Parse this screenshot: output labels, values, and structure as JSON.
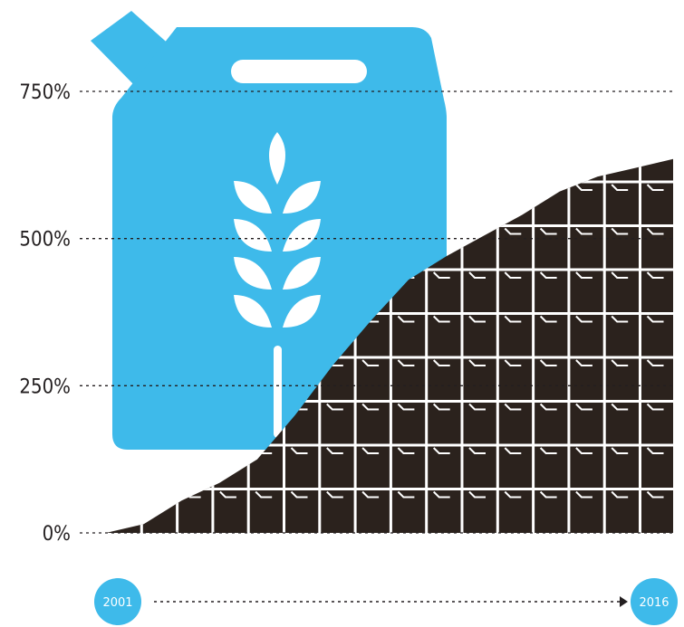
{
  "chart_data": {
    "type": "area",
    "title": "",
    "xlabel": "",
    "ylabel": "",
    "x_start_label": "2001",
    "x_end_label": "2016",
    "y_ticks": [
      "0%",
      "250%",
      "500%",
      "750%"
    ],
    "y_tick_values": [
      0,
      250,
      500,
      750
    ],
    "ylim": [
      0,
      750
    ],
    "x": [
      2001,
      2002,
      2003,
      2004,
      2005,
      2006,
      2007,
      2008,
      2009,
      2010,
      2011,
      2012,
      2013,
      2014,
      2015,
      2016
    ],
    "values": [
      0,
      15,
      55,
      85,
      125,
      200,
      285,
      360,
      430,
      470,
      505,
      540,
      580,
      605,
      620,
      635
    ],
    "grid": true,
    "colors": {
      "area": "#2b221d",
      "canister": "#3ebaea",
      "year_badge": "#3ebaea",
      "gridline": "#231f20",
      "background": "#ffffff"
    },
    "icons": [
      "fuel-canister-icon",
      "wheat-icon"
    ]
  }
}
